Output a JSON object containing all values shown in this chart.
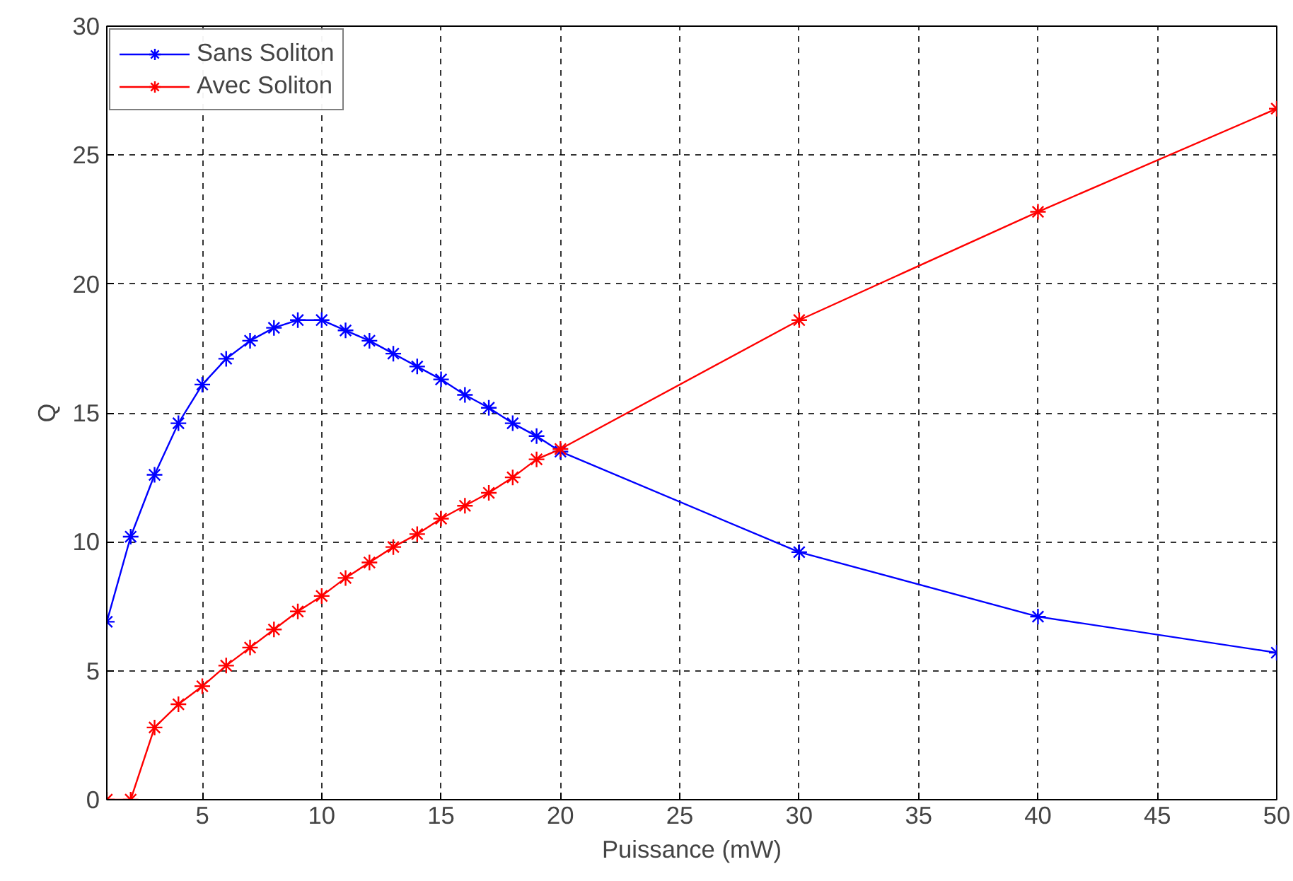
{
  "chart_data": {
    "type": "line",
    "xlabel": "Puissance (mW)",
    "ylabel": "Q",
    "x": [
      1,
      2,
      3,
      4,
      5,
      6,
      7,
      8,
      9,
      10,
      11,
      12,
      13,
      14,
      15,
      16,
      17,
      18,
      19,
      20,
      30,
      40,
      50
    ],
    "series": [
      {
        "name": "Sans Soliton",
        "color": "#0000ff",
        "values": [
          6.9,
          10.2,
          12.6,
          14.6,
          16.1,
          17.1,
          17.8,
          18.3,
          18.6,
          18.6,
          18.2,
          17.8,
          17.3,
          16.8,
          16.3,
          15.7,
          15.2,
          14.6,
          14.1,
          13.5,
          9.6,
          7.1,
          5.7
        ]
      },
      {
        "name": "Avec Soliton",
        "color": "#ff0000",
        "values": [
          0,
          0,
          2.8,
          3.7,
          4.4,
          5.2,
          5.9,
          6.6,
          7.3,
          7.9,
          8.6,
          9.2,
          9.8,
          10.3,
          10.9,
          11.4,
          11.9,
          12.5,
          13.2,
          13.6,
          18.6,
          22.8,
          26.8
        ]
      }
    ],
    "xlim": [
      1,
      50
    ],
    "xticks": [
      5,
      10,
      15,
      20,
      25,
      30,
      35,
      40,
      45,
      50
    ],
    "ylim": [
      0,
      30
    ],
    "yticks": [
      0,
      5,
      10,
      15,
      20,
      25,
      30
    ],
    "grid": true,
    "legend": "top left",
    "marker": "cross",
    "line_style": "solid"
  }
}
